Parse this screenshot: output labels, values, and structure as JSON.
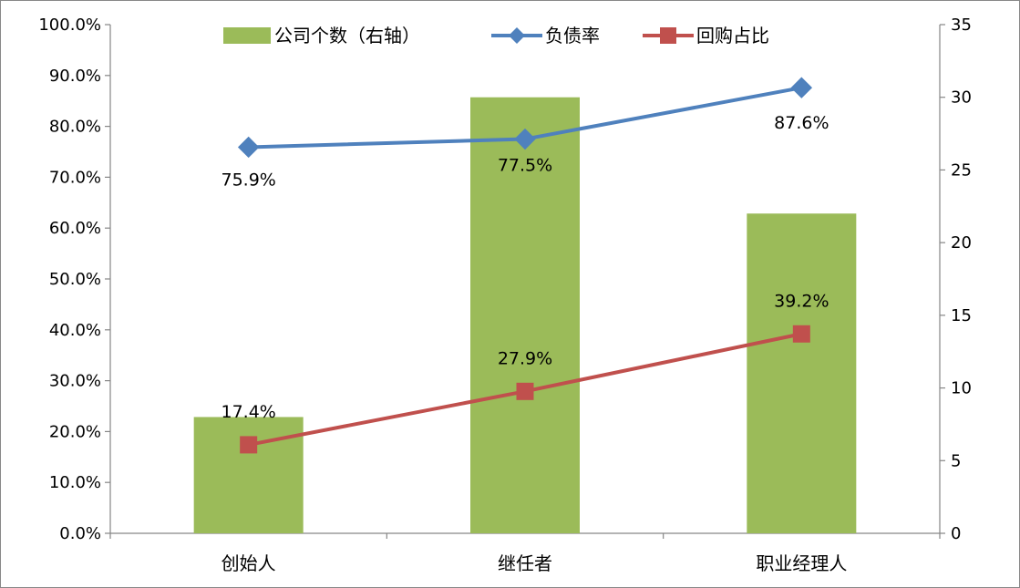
{
  "chart_data": {
    "type": "bar",
    "categories": [
      "创始人",
      "继任者",
      "职业经理人"
    ],
    "series": [
      {
        "name": "公司个数（右轴）",
        "type": "bar",
        "axis": "right",
        "values": [
          8,
          30,
          22
        ],
        "color": "#9BBB59"
      },
      {
        "name": "负债率",
        "type": "line",
        "axis": "left",
        "marker": "diamond",
        "values": [
          0.759,
          0.775,
          0.876
        ],
        "labels": [
          "75.9%",
          "77.5%",
          "87.6%"
        ],
        "color": "#4F81BD"
      },
      {
        "name": "回购占比",
        "type": "line",
        "axis": "left",
        "marker": "square",
        "values": [
          0.174,
          0.279,
          0.392
        ],
        "labels": [
          "17.4%",
          "27.9%",
          "39.2%"
        ],
        "color": "#C0504D"
      }
    ],
    "y_left": {
      "ylim": [
        0,
        1.0
      ],
      "ticks": [
        "0.0%",
        "10.0%",
        "20.0%",
        "30.0%",
        "40.0%",
        "50.0%",
        "60.0%",
        "70.0%",
        "80.0%",
        "90.0%",
        "100.0%"
      ]
    },
    "y_right": {
      "ylim": [
        0,
        35
      ],
      "ticks": [
        "0",
        "5",
        "10",
        "15",
        "20",
        "25",
        "30",
        "35"
      ]
    },
    "grid": false,
    "legend_position": "top-center"
  }
}
